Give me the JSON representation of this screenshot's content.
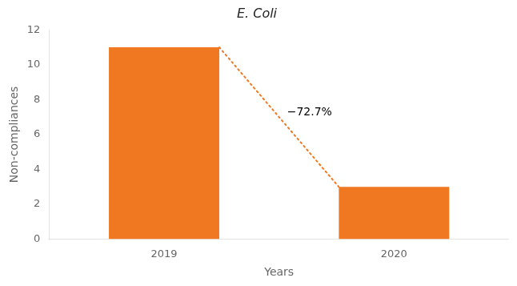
{
  "chart_data": {
    "type": "bar",
    "title": "E. Coli",
    "xlabel": "Years",
    "ylabel": "Non-compliances",
    "categories": [
      "2019",
      "2020"
    ],
    "values": [
      11,
      3
    ],
    "color": "#F07820",
    "ylim": [
      0,
      12
    ],
    "yticks": [
      0,
      2,
      4,
      6,
      8,
      10,
      12
    ],
    "grid": false,
    "annotation": "−72.7%"
  }
}
